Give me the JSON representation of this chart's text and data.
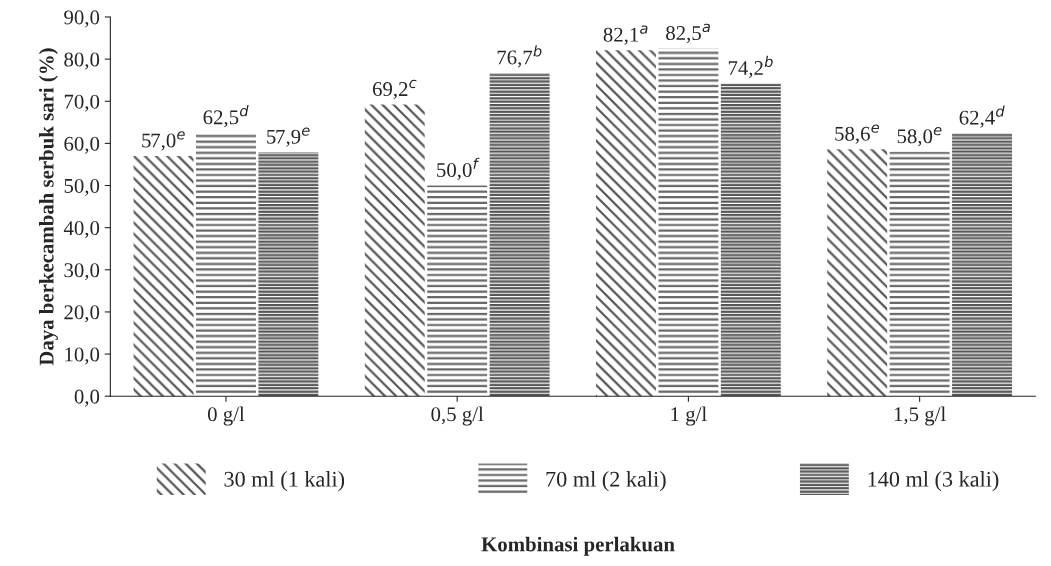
{
  "chart_data": {
    "type": "bar",
    "categories": [
      "0 g/l",
      "0,5 g/l",
      "1 g/l",
      "1,5 g/l"
    ],
    "series": [
      {
        "name": "30 ml (1 kali)",
        "color": "#555555",
        "values": [
          57.0,
          69.2,
          82.1,
          58.6
        ],
        "value_labels": [
          "57,0$^{e}$",
          "69,2$^{c}$",
          "82,1$^{a}$",
          "58,6$^{e}$"
        ]
      },
      {
        "name": "70 ml (2 kali)",
        "color": "#666666",
        "values": [
          62.5,
          50.0,
          82.5,
          58.0
        ],
        "value_labels": [
          "62,5$^{d}$",
          "50,0$^{f}$",
          "82,5$^{a}$",
          "58,0$^{e}$"
        ]
      },
      {
        "name": "140 ml (3 kali)",
        "color": "#555555",
        "values": [
          57.9,
          76.7,
          74.2,
          62.4
        ],
        "value_labels": [
          "57,9$^{e}$",
          "76,7$^{b}$",
          "74,2$^{b}$",
          "62,4$^{d}$"
        ]
      }
    ],
    "annotations": [
      "Kombinasi perlakuan"
    ],
    "ylabel": "Daya berkecambah serbuk sari (%)",
    "ylim": [
      0,
      90
    ],
    "yticks": [
      {
        "value": 0,
        "label": "0,0"
      },
      {
        "value": 10,
        "label": "10,0"
      },
      {
        "value": 20,
        "label": "20,0"
      },
      {
        "value": 30,
        "label": "30,0"
      },
      {
        "value": 40,
        "label": "40,0"
      },
      {
        "value": 50,
        "label": "50,0"
      },
      {
        "value": 60,
        "label": "60,0"
      },
      {
        "value": 70,
        "label": "70,0"
      },
      {
        "value": 80,
        "label": "80,0"
      },
      {
        "value": 90,
        "label": "90,0"
      }
    ],
    "grid": false,
    "legend": "bottom"
  }
}
